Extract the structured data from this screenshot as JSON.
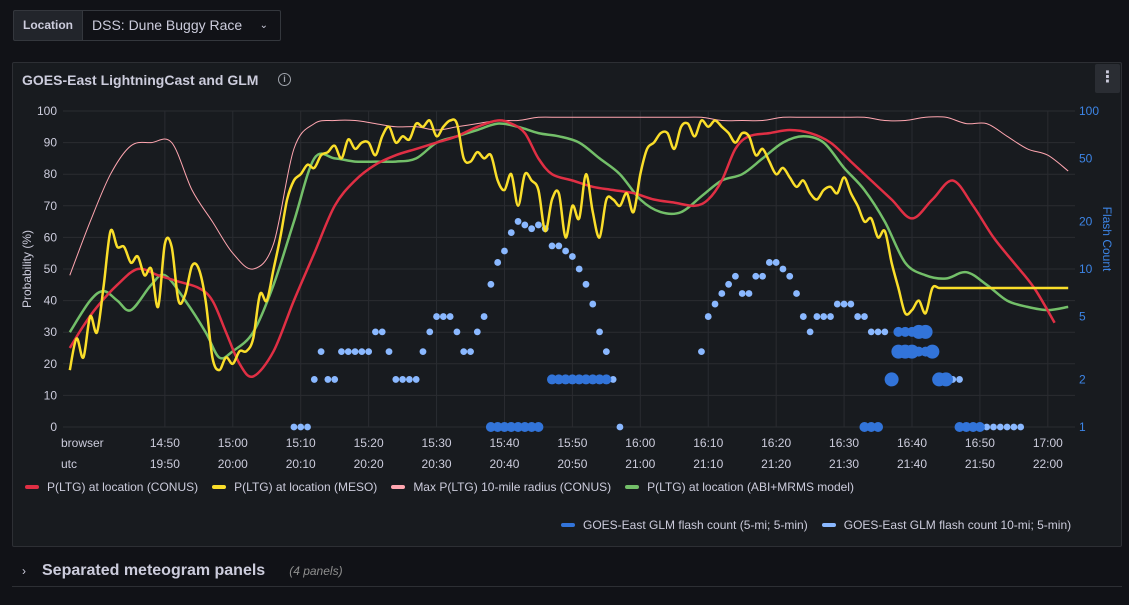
{
  "variables": {
    "label": "Location",
    "value": "DSS: Dune Buggy Race"
  },
  "panel": {
    "title": "GOES-East LightningCast and GLM",
    "menu_glyph": "⋮",
    "info_glyph": "i"
  },
  "row": {
    "chevron": "›",
    "title": "Separated meteogram panels",
    "count": "(4 panels)"
  },
  "legend": [
    {
      "label": "P(LTG) at location (CONUS)",
      "color": "#e02f44"
    },
    {
      "label": "P(LTG) at location (MESO)",
      "color": "#fade2a"
    },
    {
      "label": "Max P(LTG) 10-mile radius (CONUS)",
      "color": "#ffa6b0"
    },
    {
      "label": "P(LTG) at location (ABI+MRMS model)",
      "color": "#73bf69"
    }
  ],
  "legend2": [
    {
      "label": "GOES-East GLM flash count (5-mi; 5-min)",
      "color": "#3274d9"
    },
    {
      "label": "GOES-East GLM flash count 10-mi; 5-min)",
      "color": "#8ab8ff"
    }
  ],
  "chart_data": {
    "type": "line",
    "ylabel": "Probability (%)",
    "y2label": "Flash Count",
    "ylim": [
      0,
      100
    ],
    "y2lim": [
      1,
      100
    ],
    "y2scale": "log",
    "y_ticks": [
      "0",
      "10",
      "20",
      "30",
      "40",
      "50",
      "60",
      "70",
      "80",
      "90",
      "100"
    ],
    "y2_ticks": [
      "1",
      "2",
      "5",
      "10",
      "20",
      "50",
      "100"
    ],
    "x_range_min": [
      1,
      124
    ],
    "tz_labels": [
      "browser",
      "utc"
    ],
    "x_ticks": [
      {
        "m": 15,
        "local": "14:50",
        "utc": "19:50"
      },
      {
        "m": 25,
        "local": "15:00",
        "utc": "20:00"
      },
      {
        "m": 35,
        "local": "15:10",
        "utc": "20:10"
      },
      {
        "m": 45,
        "local": "15:20",
        "utc": "20:20"
      },
      {
        "m": 55,
        "local": "15:30",
        "utc": "20:30"
      },
      {
        "m": 65,
        "local": "15:40",
        "utc": "20:40"
      },
      {
        "m": 75,
        "local": "15:50",
        "utc": "20:50"
      },
      {
        "m": 85,
        "local": "16:00",
        "utc": "21:00"
      },
      {
        "m": 95,
        "local": "16:10",
        "utc": "21:10"
      },
      {
        "m": 105,
        "local": "16:20",
        "utc": "21:20"
      },
      {
        "m": 115,
        "local": "16:30",
        "utc": "21:30"
      },
      {
        "m": 125,
        "local": "16:40",
        "utc": "21:40"
      },
      {
        "m": 135,
        "local": "16:50",
        "utc": "21:50"
      },
      {
        "m": 145,
        "local": "17:00",
        "utc": "22:00"
      }
    ],
    "series": [
      {
        "name": "P(LTG) at location (CONUS)",
        "color": "#e02f44",
        "width": 2.5,
        "x": [
          1,
          3,
          5,
          8,
          11,
          14,
          17,
          20,
          22,
          24,
          26,
          28,
          31,
          34,
          37,
          40,
          43,
          46,
          49,
          52,
          55,
          58,
          61,
          64,
          66,
          68,
          70,
          72,
          75,
          78,
          81,
          84,
          87,
          90,
          93,
          95,
          97,
          99,
          101,
          104,
          107,
          110,
          113,
          116,
          119,
          122,
          125,
          128,
          131,
          134,
          137,
          140,
          143,
          146
        ],
        "y": [
          25,
          32,
          38,
          45,
          50,
          48,
          46,
          44,
          40,
          30,
          20,
          16,
          24,
          40,
          55,
          70,
          78,
          83,
          86,
          88,
          90,
          92,
          95,
          97,
          96,
          93,
          85,
          80,
          78,
          76,
          75,
          74,
          72,
          71,
          70,
          72,
          78,
          88,
          92,
          93,
          94,
          93,
          90,
          84,
          78,
          72,
          66,
          72,
          78,
          70,
          60,
          52,
          44,
          33
        ]
      },
      {
        "name": "P(LTG) at location (MESO)",
        "color": "#fade2a",
        "width": 2.5,
        "x": [
          1,
          2,
          3,
          4,
          5,
          6,
          7,
          8,
          9,
          10,
          11,
          12,
          13,
          14,
          15,
          16,
          17,
          18,
          19,
          20,
          21,
          22,
          23,
          24,
          25,
          26,
          27,
          28,
          29,
          30,
          31,
          32,
          33,
          34,
          35,
          36,
          37,
          38,
          39,
          40,
          41,
          42,
          43,
          44,
          45,
          46,
          47,
          48,
          49,
          50,
          51,
          52,
          53,
          54,
          55,
          56,
          57,
          58,
          59,
          60,
          61,
          62,
          63,
          64,
          65,
          66,
          67,
          68,
          69,
          70,
          71,
          72,
          73,
          74,
          75,
          76,
          77,
          78,
          79,
          80,
          81,
          82,
          83,
          84,
          85,
          86,
          87,
          88,
          89,
          90,
          91,
          92,
          93,
          94,
          95,
          96,
          97,
          98,
          99,
          100,
          101,
          102,
          103,
          104,
          105,
          106,
          107,
          108,
          109,
          110,
          111,
          112,
          113,
          114,
          115,
          116,
          117,
          118,
          119,
          120,
          121,
          122,
          123,
          124,
          125,
          126,
          127,
          128,
          129,
          130,
          131,
          132,
          133,
          134,
          135,
          136,
          137,
          138,
          139,
          140,
          141,
          142,
          143,
          144,
          145,
          146,
          147,
          148
        ],
        "y": [
          18,
          28,
          22,
          35,
          30,
          45,
          62,
          57,
          57,
          52,
          54,
          48,
          50,
          38,
          58,
          57,
          40,
          42,
          51,
          50,
          40,
          22,
          18,
          22,
          20,
          24,
          24,
          28,
          42,
          40,
          50,
          60,
          72,
          78,
          80,
          83,
          82,
          86,
          87,
          89,
          85,
          91,
          88,
          90,
          90,
          86,
          92,
          95,
          90,
          92,
          91,
          96,
          95,
          97,
          92,
          95,
          97,
          96,
          85,
          84,
          87,
          85,
          86,
          78,
          75,
          80,
          70,
          80,
          78,
          75,
          62,
          72,
          74,
          60,
          70,
          66,
          80,
          68,
          60,
          72,
          72,
          70,
          74,
          68,
          80,
          88,
          90,
          93,
          93,
          88,
          95,
          96,
          92,
          97,
          95,
          97,
          95,
          93,
          90,
          93,
          92,
          86,
          88,
          84,
          80,
          82,
          79,
          76,
          78,
          74,
          72,
          75,
          76,
          74,
          79,
          74,
          70,
          65,
          66,
          60,
          62,
          52,
          44,
          36,
          37,
          40,
          36,
          44,
          44,
          44,
          44,
          44,
          44,
          44,
          44,
          44,
          44,
          44,
          44,
          44,
          44,
          44,
          44,
          44,
          44,
          44,
          44,
          44
        ]
      },
      {
        "name": "Max P(LTG) 10-mile radius (CONUS)",
        "color": "#ffa6b0",
        "width": 1,
        "x": [
          1,
          4,
          7,
          10,
          13,
          16,
          19,
          22,
          25,
          28,
          31,
          34,
          37,
          40,
          43,
          46,
          49,
          52,
          55,
          58,
          61,
          64,
          67,
          70,
          73,
          76,
          79,
          82,
          85,
          88,
          91,
          94,
          97,
          100,
          103,
          106,
          109,
          112,
          115,
          118,
          121,
          124,
          127,
          130,
          133,
          136,
          139,
          142,
          145,
          148
        ],
        "y": [
          48,
          65,
          80,
          89,
          90,
          90,
          75,
          65,
          55,
          50,
          58,
          88,
          96,
          97,
          97,
          96,
          95,
          95,
          94,
          95,
          96,
          97,
          97,
          98,
          98,
          98,
          98,
          98,
          98,
          98,
          98,
          98,
          97,
          97,
          97,
          98,
          98,
          98,
          98,
          98,
          97,
          97,
          98,
          98,
          96,
          96,
          92,
          88,
          86,
          81
        ]
      },
      {
        "name": "P(LTG) at location (ABI+MRMS model)",
        "color": "#73bf69",
        "width": 2.5,
        "x": [
          1,
          4,
          6,
          8,
          10,
          13,
          15,
          18,
          21,
          23,
          25,
          28,
          31,
          34,
          37,
          40,
          43,
          46,
          49,
          52,
          55,
          58,
          61,
          64,
          67,
          70,
          73,
          76,
          79,
          82,
          85,
          88,
          91,
          94,
          97,
          100,
          103,
          106,
          109,
          112,
          115,
          118,
          121,
          124,
          127,
          130,
          133,
          136,
          139,
          142,
          145,
          148
        ],
        "y": [
          30,
          40,
          43,
          40,
          37,
          45,
          48,
          40,
          30,
          22,
          24,
          30,
          45,
          65,
          85,
          85,
          84,
          84,
          84,
          85,
          90,
          92,
          94,
          96,
          95,
          93,
          92,
          90,
          85,
          80,
          72,
          68,
          68,
          73,
          78,
          80,
          85,
          90,
          92,
          90,
          82,
          75,
          65,
          52,
          48,
          47,
          49,
          45,
          40,
          38,
          37,
          38
        ]
      },
      {
        "name": "GOES-East GLM flash count (5-mi; 5-min)",
        "color": "#3274d9",
        "points": [
          [
            63,
            1
          ],
          [
            64,
            1
          ],
          [
            65,
            1
          ],
          [
            66,
            1
          ],
          [
            67,
            1
          ],
          [
            68,
            1
          ],
          [
            69,
            1
          ],
          [
            70,
            1
          ],
          [
            72,
            2
          ],
          [
            73,
            2
          ],
          [
            74,
            2
          ],
          [
            75,
            2
          ],
          [
            76,
            2
          ],
          [
            77,
            2
          ],
          [
            78,
            2
          ],
          [
            79,
            2
          ],
          [
            80,
            2
          ],
          [
            118,
            1
          ],
          [
            119,
            1
          ],
          [
            120,
            1
          ],
          [
            122,
            2
          ],
          [
            123,
            3
          ],
          [
            124,
            3
          ],
          [
            125,
            3
          ],
          [
            123,
            4
          ],
          [
            124,
            4
          ],
          [
            125,
            4
          ],
          [
            126,
            4
          ],
          [
            127,
            4
          ],
          [
            126,
            3
          ],
          [
            127,
            3
          ],
          [
            128,
            3
          ],
          [
            129,
            2
          ],
          [
            132,
            1
          ],
          [
            133,
            1
          ],
          [
            134,
            1
          ],
          [
            135,
            1
          ]
        ],
        "size": 5
      }
    ]
  },
  "glm10": [
    [
      34,
      1
    ],
    [
      35,
      1
    ],
    [
      36,
      1
    ],
    [
      37,
      2
    ],
    [
      38,
      3
    ],
    [
      39,
      2
    ],
    [
      40,
      2
    ],
    [
      41,
      3
    ],
    [
      42,
      3
    ],
    [
      43,
      3
    ],
    [
      44,
      3
    ],
    [
      45,
      3
    ],
    [
      46,
      4
    ],
    [
      47,
      4
    ],
    [
      48,
      3
    ],
    [
      49,
      2
    ],
    [
      50,
      2
    ],
    [
      51,
      2
    ],
    [
      52,
      2
    ],
    [
      53,
      3
    ],
    [
      54,
      4
    ],
    [
      55,
      5
    ],
    [
      56,
      5
    ],
    [
      57,
      5
    ],
    [
      58,
      4
    ],
    [
      59,
      3
    ],
    [
      60,
      3
    ],
    [
      61,
      4
    ],
    [
      62,
      5
    ],
    [
      63,
      8
    ],
    [
      64,
      11
    ],
    [
      65,
      13
    ],
    [
      66,
      17
    ],
    [
      67,
      20
    ],
    [
      68,
      19
    ],
    [
      69,
      18
    ],
    [
      70,
      19
    ],
    [
      71,
      18
    ],
    [
      72,
      14
    ],
    [
      73,
      14
    ],
    [
      74,
      13
    ],
    [
      75,
      12
    ],
    [
      76,
      10
    ],
    [
      77,
      8
    ],
    [
      78,
      6
    ],
    [
      79,
      4
    ],
    [
      80,
      3
    ],
    [
      81,
      2
    ],
    [
      82,
      1
    ],
    [
      94,
      3
    ],
    [
      95,
      5
    ],
    [
      96,
      6
    ],
    [
      97,
      7
    ],
    [
      98,
      8
    ],
    [
      99,
      9
    ],
    [
      100,
      7
    ],
    [
      101,
      7
    ],
    [
      102,
      9
    ],
    [
      103,
      9
    ],
    [
      104,
      11
    ],
    [
      105,
      11
    ],
    [
      106,
      10
    ],
    [
      107,
      9
    ],
    [
      108,
      7
    ],
    [
      109,
      5
    ],
    [
      110,
      4
    ],
    [
      111,
      5
    ],
    [
      112,
      5
    ],
    [
      113,
      5
    ],
    [
      114,
      6
    ],
    [
      115,
      6
    ],
    [
      116,
      6
    ],
    [
      117,
      5
    ],
    [
      118,
      5
    ],
    [
      119,
      4
    ],
    [
      120,
      4
    ],
    [
      121,
      4
    ],
    [
      123,
      4
    ],
    [
      124,
      4
    ],
    [
      125,
      3
    ],
    [
      126,
      3
    ],
    [
      127,
      3
    ],
    [
      128,
      3
    ],
    [
      129,
      2
    ],
    [
      130,
      2
    ],
    [
      131,
      2
    ],
    [
      132,
      2
    ],
    [
      133,
      1
    ],
    [
      134,
      1
    ],
    [
      135,
      1
    ],
    [
      136,
      1
    ],
    [
      137,
      1
    ],
    [
      138,
      1
    ],
    [
      139,
      1
    ],
    [
      140,
      1
    ],
    [
      141,
      1
    ]
  ],
  "glm5_big": [
    [
      122,
      2
    ],
    [
      123,
      3
    ],
    [
      124,
      3
    ],
    [
      125,
      3
    ],
    [
      126,
      4
    ],
    [
      127,
      4
    ],
    [
      128,
      3
    ],
    [
      129,
      2
    ],
    [
      130,
      2
    ]
  ]
}
